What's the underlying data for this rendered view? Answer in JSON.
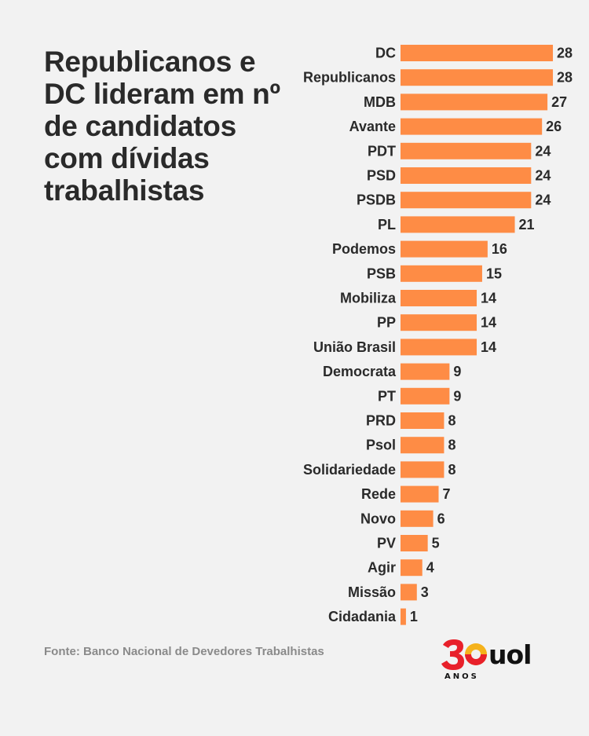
{
  "title": "Republicanos e DC lideram em nº de candidatos com dívidas trabalhistas",
  "source": "Fonte: Banco Nacional de Devedores Trabalhistas",
  "logo": {
    "number": "30",
    "anos": "ANOS",
    "brand": "uol"
  },
  "colors": {
    "bar": "#fe8c45",
    "logo_red": "#e8202a",
    "logo_yellow": "#f5b21b"
  },
  "chart_data": {
    "type": "bar",
    "orientation": "horizontal",
    "categories": [
      "DC",
      "Republicanos",
      "MDB",
      "Avante",
      "PDT",
      "PSD",
      "PSDB",
      "PL",
      "Podemos",
      "PSB",
      "Mobiliza",
      "PP",
      "União Brasil",
      "Democrata",
      "PT",
      "PRD",
      "Psol",
      "Solidariedade",
      "Rede",
      "Novo",
      "PV",
      "Agir",
      "Missão",
      "Cidadania"
    ],
    "values": [
      28,
      28,
      27,
      26,
      24,
      24,
      24,
      21,
      16,
      15,
      14,
      14,
      14,
      9,
      9,
      8,
      8,
      8,
      7,
      6,
      5,
      4,
      3,
      1
    ],
    "title": "Republicanos e DC lideram em nº de candidatos com dívidas trabalhistas",
    "xlabel": "",
    "ylabel": "",
    "grid": false,
    "data_labels": true
  }
}
